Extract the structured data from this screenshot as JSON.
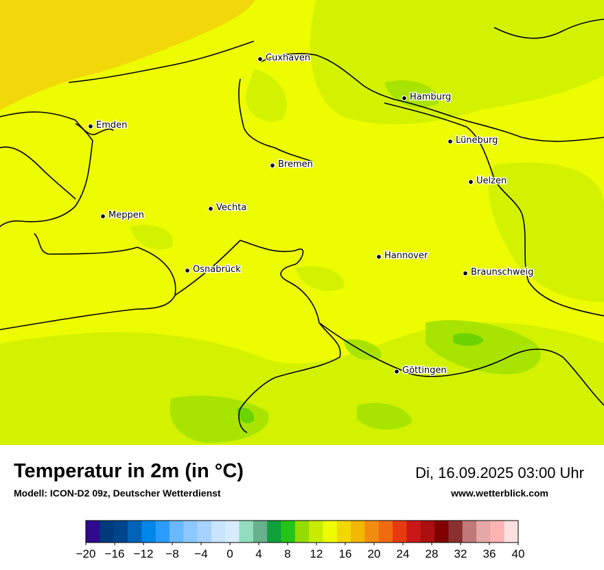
{
  "map": {
    "colors": {
      "sea": "#f2d80a",
      "land_base": "#eefc00",
      "land_green_light": "#d3f200",
      "land_green_mid": "#a8e400",
      "land_green_dark": "#6bd400",
      "border": "#000000"
    },
    "cities": [
      {
        "name": "Cuxhaven"
      },
      {
        "name": "Hamburg"
      },
      {
        "name": "Emden"
      },
      {
        "name": "Lüneburg"
      },
      {
        "name": "Bremen"
      },
      {
        "name": "Uelzen"
      },
      {
        "name": "Vechta"
      },
      {
        "name": "Meppen"
      },
      {
        "name": "Hannover"
      },
      {
        "name": "Osnabrück"
      },
      {
        "name": "Braunschweig"
      },
      {
        "name": "Göttingen"
      }
    ]
  },
  "header": {
    "title": "Temperatur in 2m (in °C)",
    "model": "Modell: ICON-D2 09z, Deutscher Wetterdienst",
    "datetime": "Di, 16.09.2025 03:00 Uhr",
    "website": "www.wetterblick.com"
  },
  "colorbar": {
    "tick_labels": [
      "−20",
      "−16",
      "−12",
      "−8",
      "−4",
      "0",
      "4",
      "8",
      "12",
      "16",
      "20",
      "24",
      "28",
      "32",
      "36",
      "40"
    ],
    "min": -20,
    "max": 40,
    "step": 2,
    "colors": [
      "#2e0a8c",
      "#003a7a",
      "#00458c",
      "#0063b8",
      "#0085e8",
      "#2a9cff",
      "#6ab9ff",
      "#8cc8ff",
      "#a6d3ff",
      "#c9e4ff",
      "#d8ecff",
      "#92dcc0",
      "#66b08c",
      "#12a03a",
      "#22c418",
      "#94dc00",
      "#c8ec00",
      "#eefc00",
      "#f2d800",
      "#f2b800",
      "#f28c10",
      "#f06a10",
      "#e83a10",
      "#c81818",
      "#aa1010",
      "#800000",
      "#8a3030",
      "#c07878",
      "#e4a8a8",
      "#ffb4b4",
      "#ffe0e0"
    ]
  }
}
